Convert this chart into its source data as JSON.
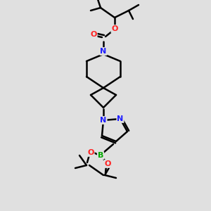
{
  "background_color": "#e0e0e0",
  "bond_color": "#000000",
  "bond_width": 1.8,
  "atom_colors": {
    "N": "#2020ff",
    "O": "#ff2020",
    "B": "#00aa00"
  },
  "figsize": [
    3.0,
    3.0
  ],
  "dpi": 100
}
